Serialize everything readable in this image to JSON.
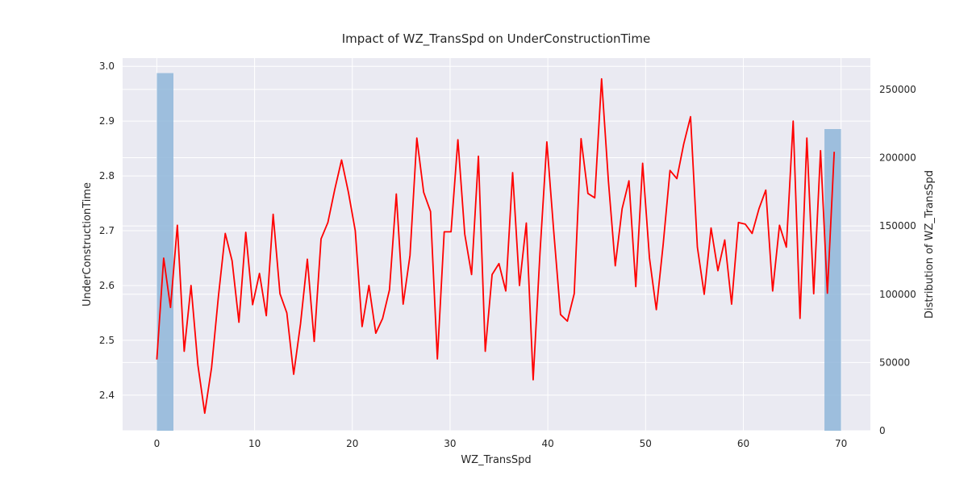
{
  "chart_data": {
    "type": "line",
    "title": "Impact of WZ_TransSpd on UnderConstructionTime",
    "xlabel": "WZ_TransSpd",
    "ylabel": "UnderConstructionTime",
    "y2label": "Distribution of WZ_TransSpd",
    "xlim": [
      -3.5,
      73.0
    ],
    "ylim": [
      2.335,
      3.015
    ],
    "y2lim": [
      0,
      273000
    ],
    "x_ticks": [
      0,
      10,
      20,
      30,
      40,
      50,
      60,
      70
    ],
    "y_ticks": [
      2.4,
      2.5,
      2.6,
      2.7,
      2.8,
      2.9,
      3.0
    ],
    "y2_ticks": [
      0,
      50000,
      100000,
      150000,
      200000,
      250000
    ],
    "grid": true,
    "line_color": "#ff0000",
    "bar_color": "#8fb6d9",
    "background": "#eaeaf2",
    "distribution_bars": [
      {
        "x0": 0,
        "x1": 1.7,
        "value": 262000
      },
      {
        "x0": 68.3,
        "x1": 70,
        "value": 221000
      }
    ],
    "series": [
      {
        "x": [
          0.0,
          0.7,
          1.4,
          2.1,
          2.8,
          3.5,
          4.2,
          4.9,
          5.6,
          6.3,
          7.0,
          7.7,
          8.4,
          9.1,
          9.8,
          10.5,
          11.2,
          11.9,
          12.6,
          13.3,
          14.0,
          14.7,
          15.4,
          16.1,
          16.8,
          17.5,
          18.2,
          18.9,
          19.6,
          20.3,
          21.0,
          21.7,
          22.4,
          23.1,
          23.8,
          24.5,
          25.2,
          25.9,
          26.6,
          27.3,
          28.0,
          28.7,
          29.4,
          30.1,
          30.8,
          31.5,
          32.2,
          32.9,
          33.6,
          34.3,
          35.0,
          35.7,
          36.4,
          37.1,
          37.8,
          38.5,
          39.2,
          39.9,
          40.6,
          41.3,
          42.0,
          42.7,
          43.4,
          44.1,
          44.8,
          45.5,
          46.2,
          46.9,
          47.6,
          48.3,
          49.0,
          49.7,
          50.4,
          51.1,
          51.8,
          52.5,
          53.2,
          53.9,
          54.6,
          55.3,
          56.0,
          56.7,
          57.4,
          58.1,
          58.8,
          59.5,
          60.2,
          60.9,
          61.6,
          62.3,
          63.0,
          63.7,
          64.4,
          65.1,
          65.8,
          66.5,
          67.2,
          67.9,
          68.6,
          69.3
        ],
        "y": [
          2.465,
          2.65,
          2.56,
          2.71,
          2.48,
          2.6,
          2.455,
          2.367,
          2.45,
          2.58,
          2.695,
          2.645,
          2.533,
          2.697,
          2.565,
          2.622,
          2.545,
          2.73,
          2.585,
          2.55,
          2.438,
          2.53,
          2.648,
          2.498,
          2.685,
          2.715,
          2.775,
          2.829,
          2.77,
          2.7,
          2.525,
          2.6,
          2.513,
          2.54,
          2.592,
          2.767,
          2.566,
          2.655,
          2.869,
          2.77,
          2.735,
          2.466,
          2.698,
          2.698,
          2.866,
          2.694,
          2.62,
          2.836,
          2.48,
          2.62,
          2.64,
          2.59,
          2.806,
          2.6,
          2.714,
          2.428,
          2.66,
          2.862,
          2.7,
          2.547,
          2.535,
          2.585,
          2.868,
          2.768,
          2.76,
          2.977,
          2.79,
          2.636,
          2.74,
          2.791,
          2.598,
          2.823,
          2.65,
          2.556,
          2.675,
          2.81,
          2.795,
          2.858,
          2.908,
          2.67,
          2.584,
          2.705,
          2.627,
          2.683,
          2.566,
          2.715,
          2.712,
          2.695,
          2.74,
          2.774,
          2.59,
          2.71,
          2.67,
          2.9,
          2.54,
          2.869,
          2.585,
          2.846,
          2.586,
          2.844
        ]
      }
    ]
  }
}
